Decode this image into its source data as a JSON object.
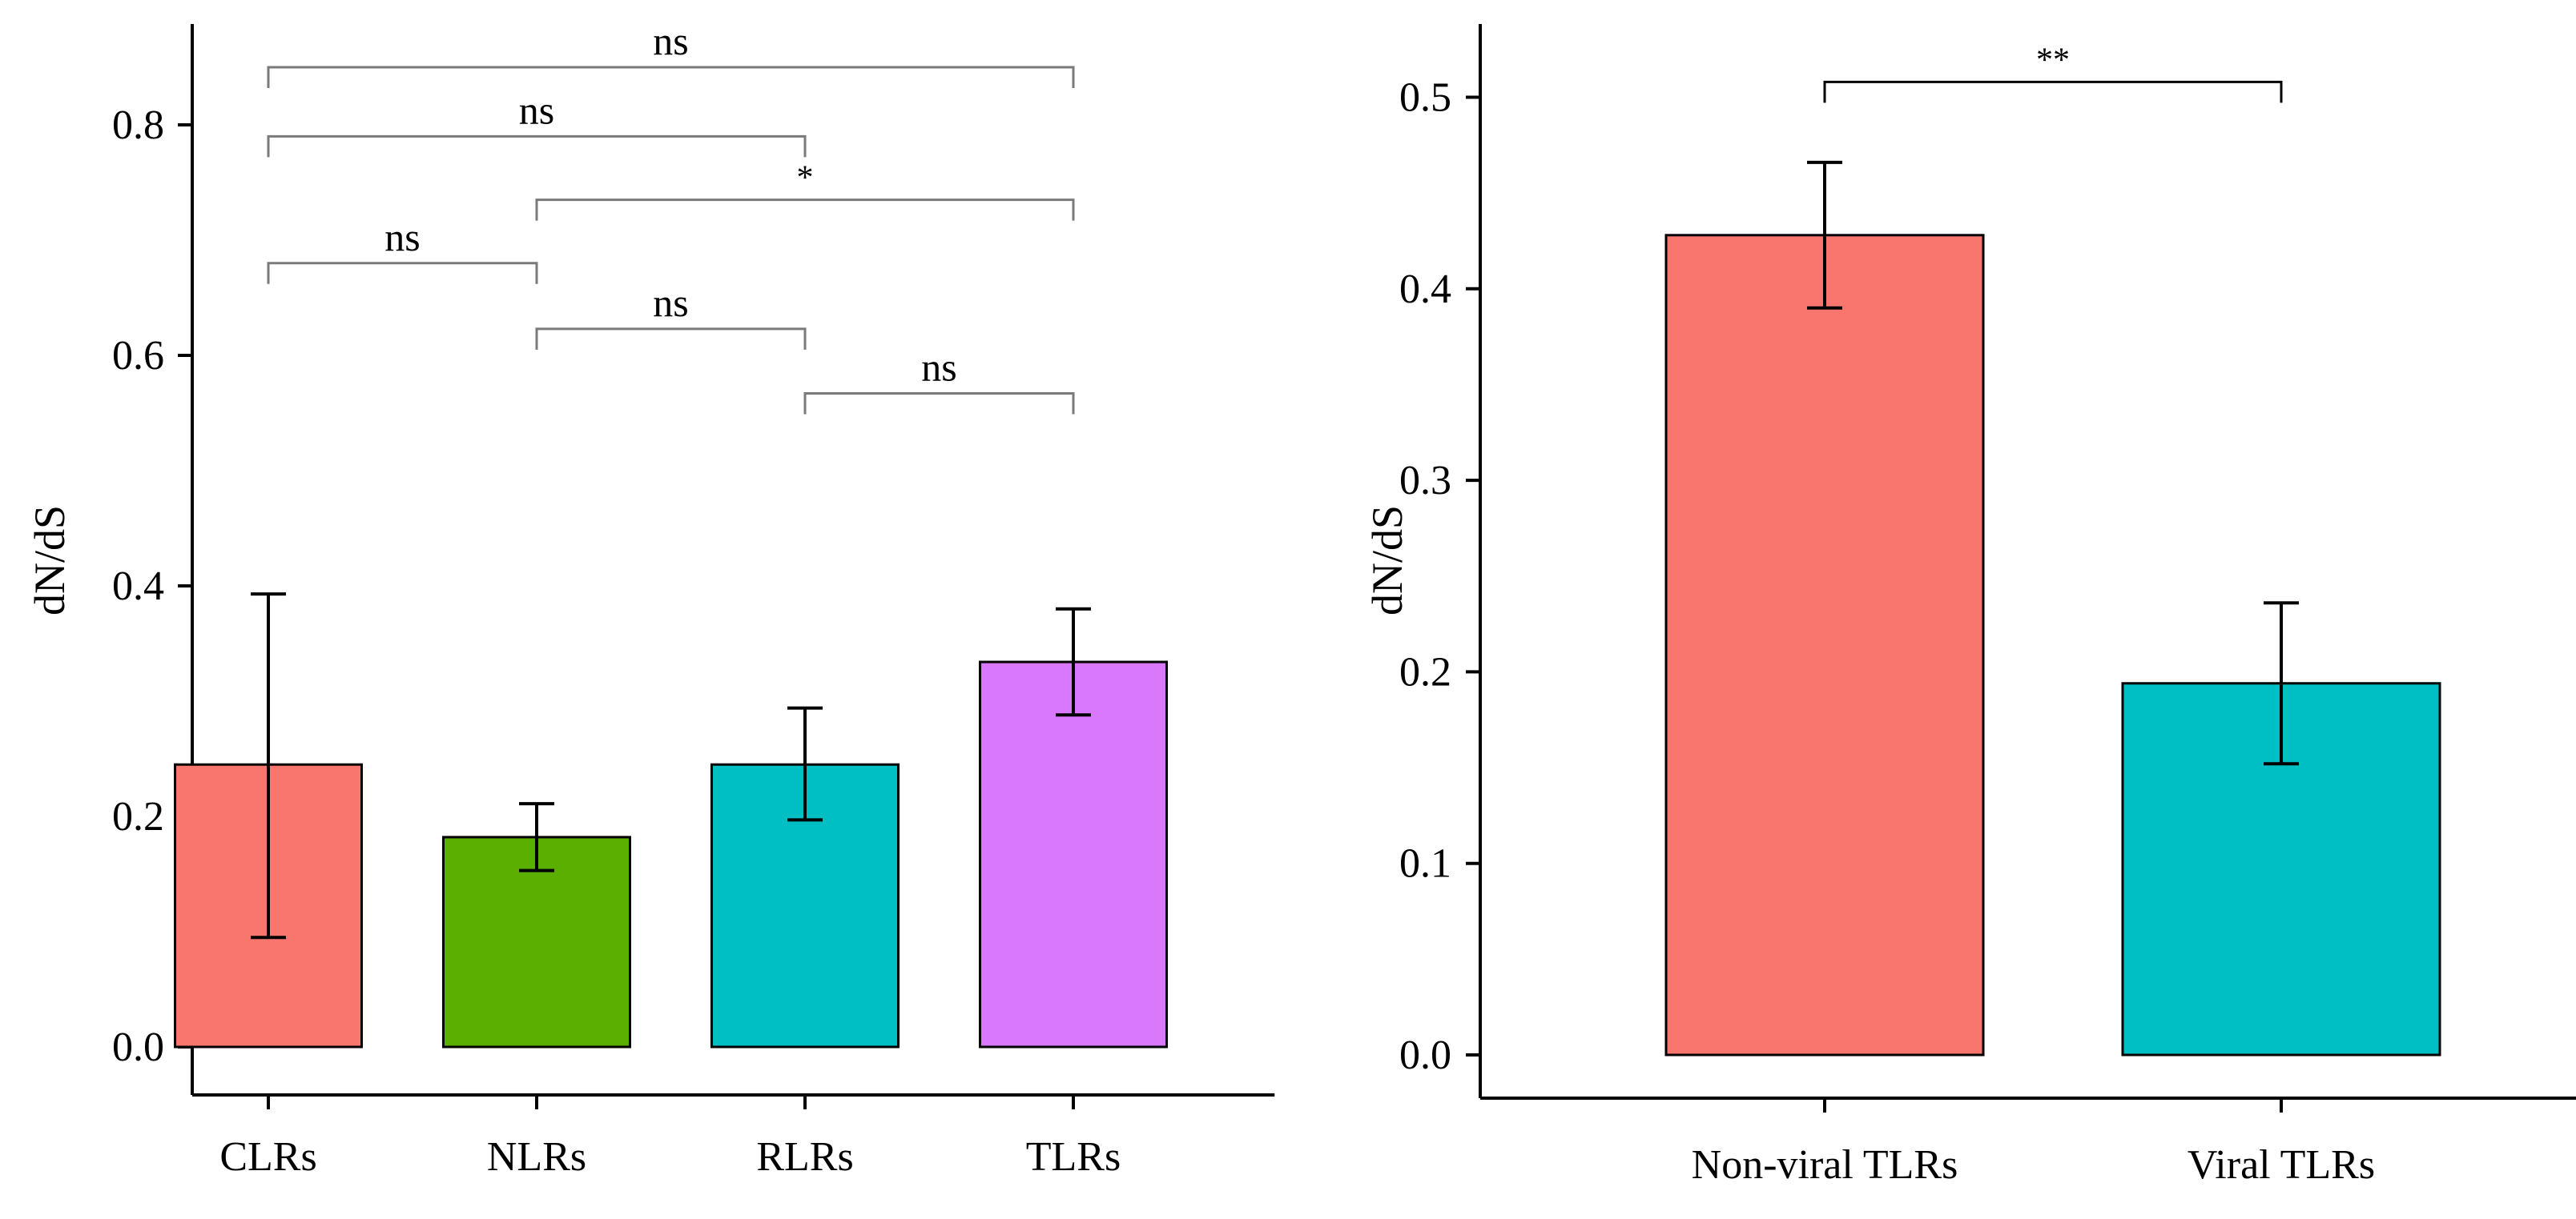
{
  "chart_data": [
    {
      "type": "bar",
      "categories": [
        "CLRs",
        "NLRs",
        "RLRs",
        "TLRs"
      ],
      "values": [
        0.245,
        0.182,
        0.245,
        0.334
      ],
      "error_low": [
        0.095,
        0.153,
        0.197,
        0.288
      ],
      "error_high": [
        0.393,
        0.211,
        0.294,
        0.38
      ],
      "colors": [
        "#F8766D",
        "#5AAF00",
        "#00BFC4",
        "#D978FB"
      ],
      "xlabel": "",
      "ylabel": "dN/dS",
      "ylim": [
        0,
        0.88
      ],
      "yticks": [
        0.0,
        0.2,
        0.4,
        0.6,
        0.8
      ],
      "ytick_labels": [
        "0.0",
        "0.2",
        "0.4",
        "0.6",
        "0.8"
      ],
      "comparisons": [
        {
          "from": "CLRs",
          "to": "TLRs",
          "label": "ns",
          "y": 0.85
        },
        {
          "from": "CLRs",
          "to": "RLRs",
          "label": "ns",
          "y": 0.79
        },
        {
          "from": "NLRs",
          "to": "TLRs",
          "label": "*",
          "y": 0.735
        },
        {
          "from": "CLRs",
          "to": "NLRs",
          "label": "ns",
          "y": 0.68
        },
        {
          "from": "NLRs",
          "to": "RLRs",
          "label": "ns",
          "y": 0.623
        },
        {
          "from": "RLRs",
          "to": "TLRs",
          "label": "ns",
          "y": 0.567
        }
      ]
    },
    {
      "type": "bar",
      "categories": [
        "Non-viral TLRs",
        "Viral TLRs"
      ],
      "values": [
        0.428,
        0.194
      ],
      "error_low": [
        0.39,
        0.152
      ],
      "error_high": [
        0.466,
        0.236
      ],
      "colors": [
        "#F8766D",
        "#00BFC4"
      ],
      "xlabel": "",
      "ylabel": "dN/dS",
      "ylim": [
        0,
        0.54
      ],
      "yticks": [
        0.0,
        0.1,
        0.2,
        0.3,
        0.4,
        0.5
      ],
      "ytick_labels": [
        "0.0",
        "0.1",
        "0.2",
        "0.3",
        "0.4",
        "0.5"
      ],
      "comparisons": [
        {
          "from": "Non-viral TLRs",
          "to": "Viral TLRs",
          "label": "**",
          "y": 0.508
        }
      ]
    }
  ]
}
